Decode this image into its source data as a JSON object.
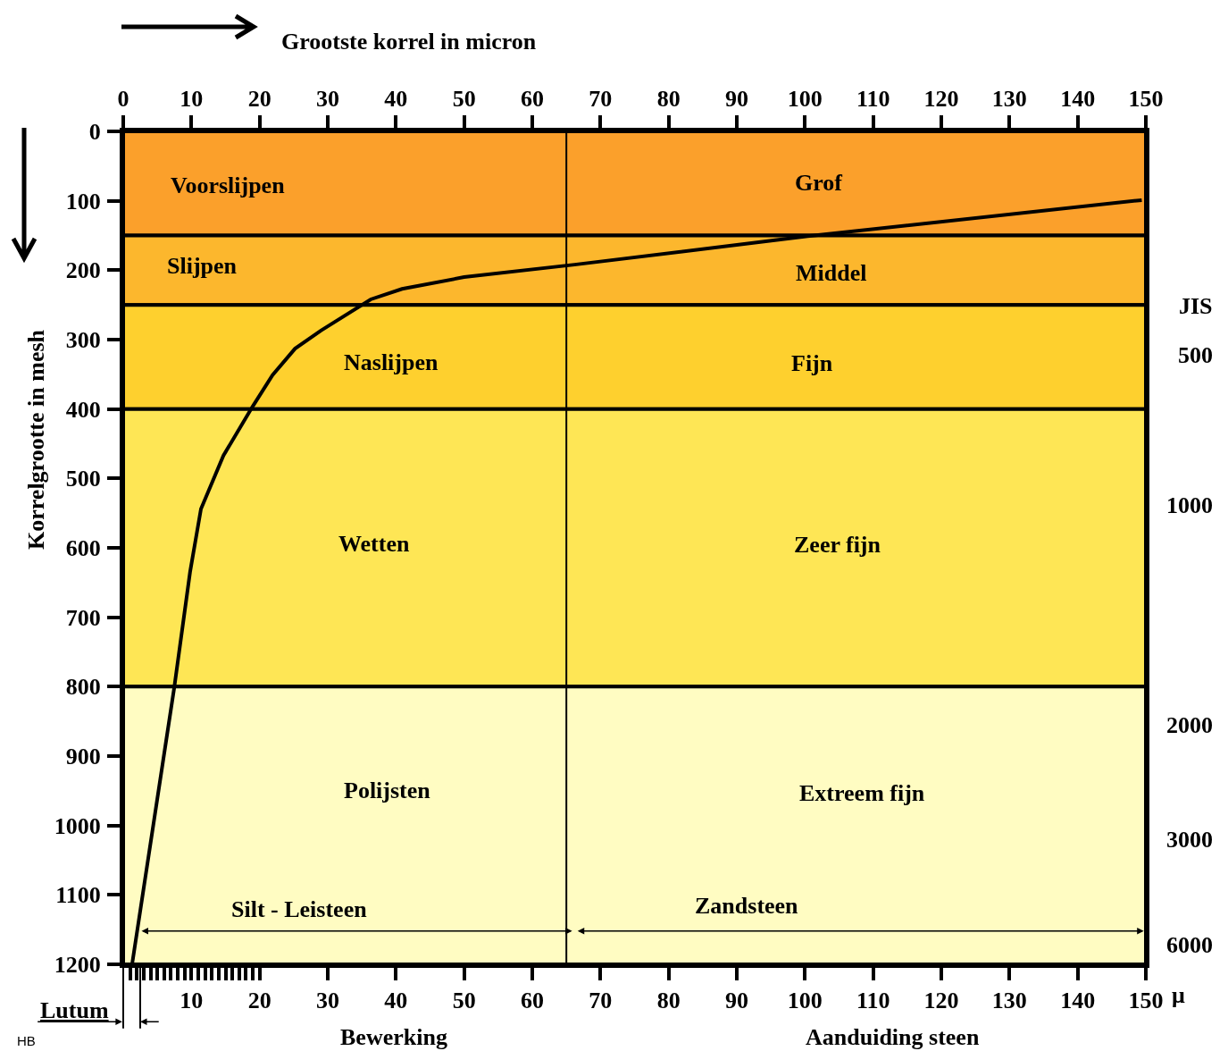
{
  "chart_data": {
    "type": "line",
    "x2label": "Grootste korrel in micron",
    "ylabel": "Korrelgrootte in mesh",
    "series": [
      {
        "color": "#000000",
        "x": [
          1.3,
          7.5,
          9.8,
          11.4,
          14.7,
          19,
          21.9,
          25.2,
          29,
          36.3,
          40.9,
          50,
          66.2,
          100.4,
          149.4
        ],
        "values": [
          1200,
          800,
          635,
          544,
          467,
          396,
          351,
          313,
          287,
          242,
          227,
          210,
          192,
          151,
          99
        ]
      }
    ],
    "xlim": [
      0,
      150
    ],
    "xticks": [
      {
        "value": 1,
        "label": null
      },
      {
        "value": 2,
        "label": null
      },
      {
        "value": 3,
        "label": null
      },
      {
        "value": 4,
        "label": null
      },
      {
        "value": 5,
        "label": null
      },
      {
        "value": 6,
        "label": null
      },
      {
        "value": 7,
        "label": null
      },
      {
        "value": 8,
        "label": null
      },
      {
        "value": 9,
        "label": null
      },
      10,
      {
        "value": 11,
        "label": null
      },
      {
        "value": 12,
        "label": null
      },
      {
        "value": 13,
        "label": null
      },
      {
        "value": 14,
        "label": null
      },
      {
        "value": 15,
        "label": null
      },
      {
        "value": 16,
        "label": null
      },
      {
        "value": 17,
        "label": null
      },
      {
        "value": 18,
        "label": null
      },
      {
        "value": 19,
        "label": null
      },
      20,
      30,
      40,
      50,
      60,
      70,
      80,
      90,
      100,
      110,
      120,
      130,
      140,
      150
    ],
    "x2lim": [
      0,
      150
    ],
    "x2ticks": [
      0,
      10,
      20,
      30,
      40,
      50,
      60,
      70,
      80,
      90,
      100,
      110,
      120,
      130,
      140,
      150
    ],
    "ylim": [
      1200,
      0
    ],
    "yticks": [
      0,
      100,
      200,
      300,
      400,
      500,
      600,
      700,
      800,
      900,
      1000,
      1100,
      1200
    ],
    "bands": [
      {
        "axis": "y",
        "from": 0,
        "to": 150,
        "color": "#fba02b"
      },
      {
        "axis": "y",
        "from": 150,
        "to": 250,
        "color": "#fcb72d"
      },
      {
        "axis": "y",
        "from": 250,
        "to": 400,
        "color": "#fed02e"
      },
      {
        "axis": "y",
        "from": 400,
        "to": 800,
        "color": "#fee655"
      },
      {
        "axis": "y",
        "from": 800,
        "to": 1200,
        "color": "#fffcc2"
      }
    ],
    "ref_lines": [
      {
        "axis": "x",
        "value": 65,
        "color": "#000000"
      }
    ],
    "annotations": [
      "Voorslijpen",
      "Grof",
      "Slijpen",
      "Middel",
      "Naslijpen",
      "Fijn",
      "Wetten",
      "Zeer fijn",
      "Polijsten",
      "Extreem fijn",
      "Silt - Leisteen",
      "Zandsteen",
      "Lutum",
      "Bewerking",
      "Aanduiding steen",
      "μ",
      "HB",
      "JIS",
      "500",
      "1000",
      "2000",
      "3000",
      "6000"
    ],
    "grid": false
  }
}
